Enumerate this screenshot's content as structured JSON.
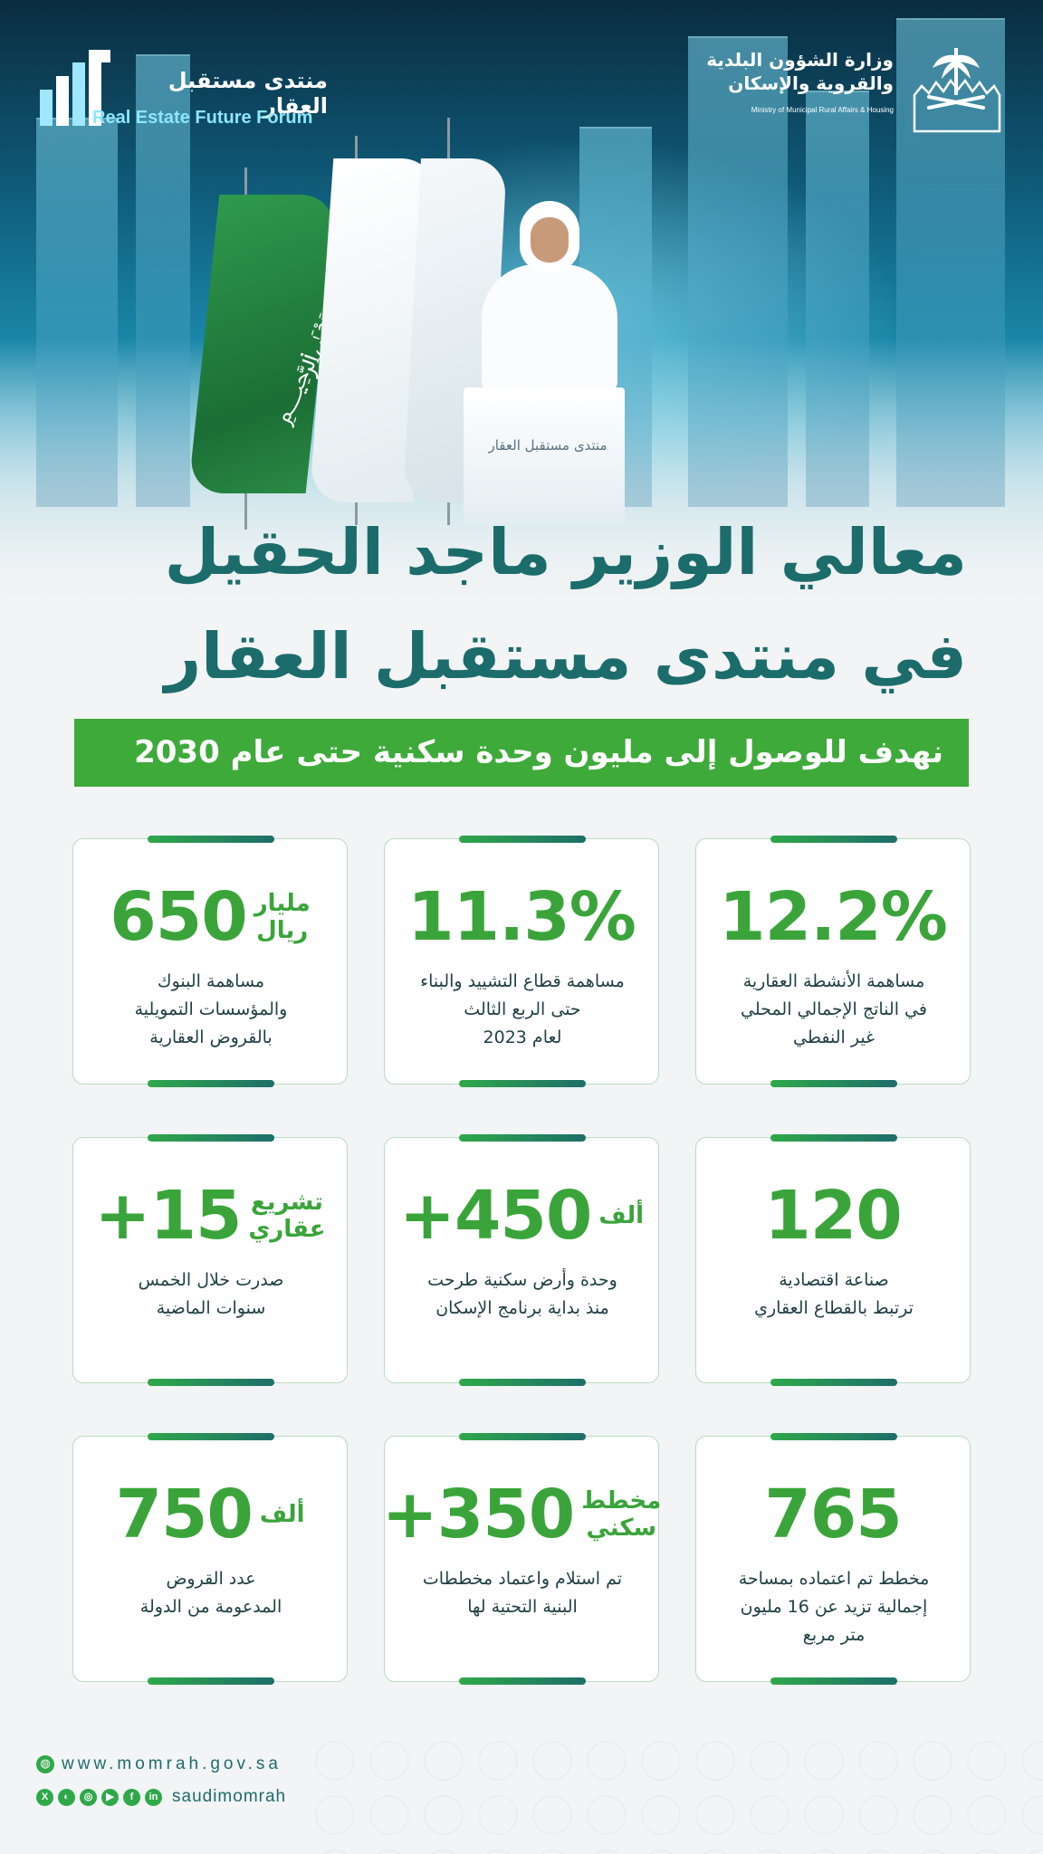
{
  "header": {
    "forum_name_ar": "منتدى مستقبل العقار",
    "forum_name_en": "Real Estate Future Forum",
    "ministry_name_ar_line1": "وزارة الشؤون البلدية",
    "ministry_name_ar_line2": "والقروية والإسكان",
    "ministry_name_en": "Ministry of Municipal Rural Affairs & Housing",
    "podium_text": "منتدى مستقبل العقار"
  },
  "title": {
    "line1": "معالي الوزير ماجد الحقيل",
    "line2": "في منتدى مستقبل العقار"
  },
  "banner": "نهدف للوصول إلى مليون وحدة سكنية حتى عام 2030",
  "stats": [
    {
      "value": "12.2%",
      "unit": "",
      "description": "مساهمة الأنشطة العقارية\nفي الناتج الإجمالي المحلي\nغير النفطي"
    },
    {
      "value": "11.3%",
      "unit": "",
      "description": "مساهمة قطاع التشييد والبناء\nحتى الربع الثالث\nلعام 2023"
    },
    {
      "value": "650",
      "unit": "مليار\nريال",
      "description": "مساهمة البنوك\nوالمؤسسات التمويلية\nبالقروض العقارية"
    },
    {
      "value": "120",
      "unit": "",
      "description": "صناعة اقتصادية\nترتبط بالقطاع العقاري"
    },
    {
      "value": "+450",
      "unit": "ألف",
      "description": "وحدة وأرض سكنية طرحت\nمنذ بداية برنامج الإسكان"
    },
    {
      "value": "+15",
      "unit": "تشريع\nعقاري",
      "description": "صدرت خلال الخمس\nسنوات الماضية"
    },
    {
      "value": "765",
      "unit": "",
      "description": "مخطط تم اعتماده بمساحة\nإجمالية تزيد عن 16 مليون\nمتر مربع"
    },
    {
      "value": "+350",
      "unit": "مخطط\nسكني",
      "description": "تم استلام واعتماد مخططات\nالبنية التحتية لها"
    },
    {
      "value": "750",
      "unit": "ألف",
      "description": "عدد القروض\nالمدعومة من الدولة"
    }
  ],
  "footer": {
    "website": "www.momrah.gov.sa",
    "handle": "saudimomrah",
    "social_icons": [
      "x-icon",
      "snapchat-icon",
      "instagram-icon",
      "youtube-icon",
      "facebook-icon",
      "linkedin-icon"
    ]
  },
  "colors": {
    "primary_teal": "#1c6c6c",
    "accent_green": "#3eaa3a",
    "card_border": "#b9dcbf"
  }
}
